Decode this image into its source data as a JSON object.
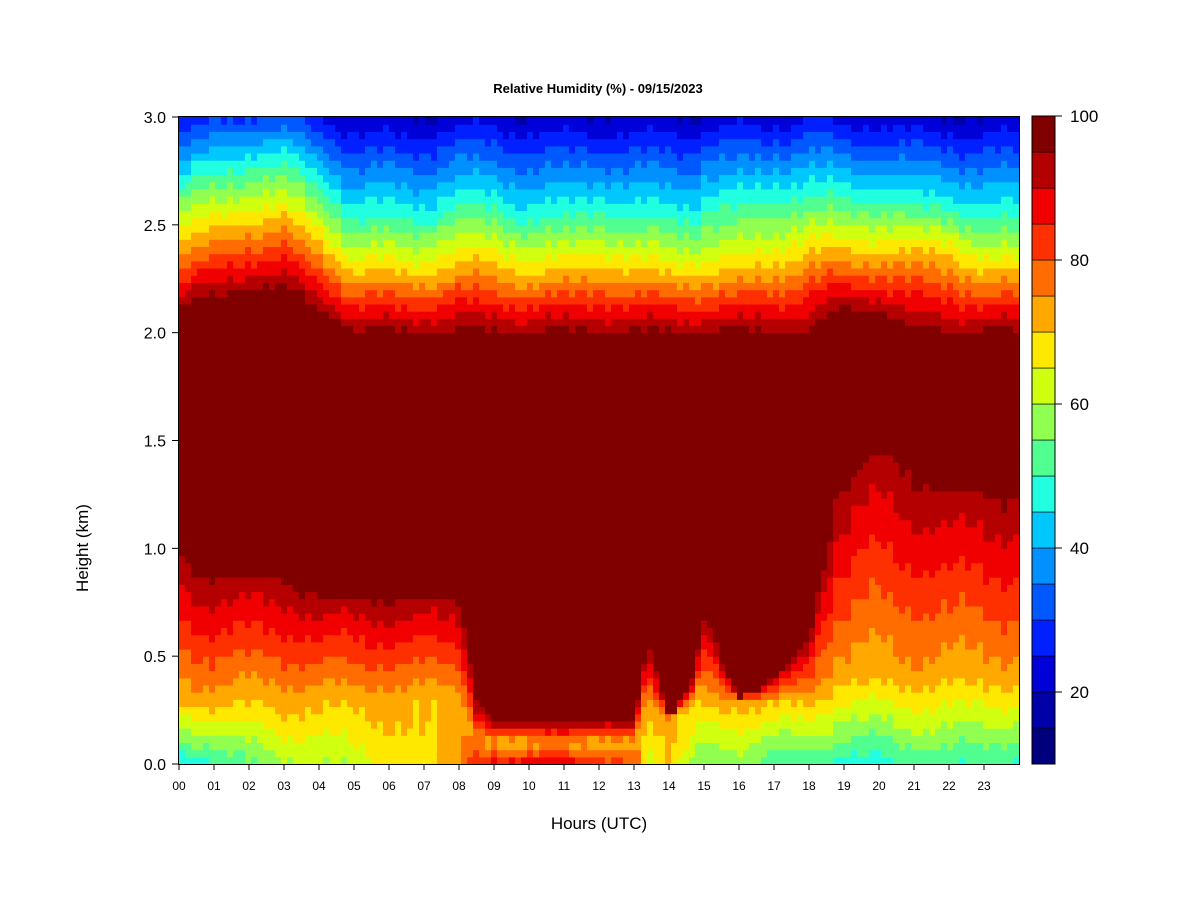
{
  "chart_data": {
    "type": "heatmap",
    "title": "Relative Humidity (%) - 09/15/2023",
    "xlabel": "Hours (UTC)",
    "ylabel": "Height (km)",
    "xlim": [
      0,
      24
    ],
    "ylim": [
      0.0,
      3.0
    ],
    "x_ticks": [
      "00",
      "01",
      "02",
      "03",
      "04",
      "05",
      "06",
      "07",
      "08",
      "09",
      "10",
      "11",
      "12",
      "13",
      "14",
      "15",
      "16",
      "17",
      "18",
      "19",
      "20",
      "21",
      "22",
      "23"
    ],
    "y_ticks": [
      "0.0",
      "0.5",
      "1.0",
      "1.5",
      "2.0",
      "2.5",
      "3.0"
    ],
    "colorbar": {
      "range": [
        10,
        100
      ],
      "step": 5,
      "ticks": [
        "20",
        "40",
        "60",
        "80",
        "100"
      ],
      "colors": [
        "#00007f",
        "#0000a8",
        "#0000d8",
        "#0020ff",
        "#0058ff",
        "#0090ff",
        "#00c8ff",
        "#20ffe0",
        "#50ff90",
        "#90ff50",
        "#d0ff10",
        "#ffe800",
        "#ffa800",
        "#ff6c00",
        "#ff3000",
        "#f00000",
        "#b40000",
        "#800000"
      ]
    },
    "profiles": {
      "description_units": "height in km, relative humidity in %",
      "hours": [
        0,
        1,
        2,
        3,
        4,
        5,
        6,
        7,
        8,
        8.5,
        9,
        10,
        11,
        12,
        13,
        13.4,
        14,
        14.7,
        15,
        16,
        17,
        18,
        18.8,
        20,
        21,
        22,
        23,
        24
      ],
      "surface_rh": [
        45,
        48,
        55,
        58,
        60,
        62,
        65,
        70,
        72,
        85,
        88,
        90,
        88,
        85,
        80,
        60,
        70,
        60,
        55,
        55,
        52,
        50,
        48,
        48,
        50,
        52,
        50,
        48
      ],
      "moist_layer_bottom_km": [
        0.3,
        0.3,
        0.3,
        0.3,
        0.3,
        0.3,
        0.3,
        0.3,
        0.3,
        0.1,
        0.1,
        0.1,
        0.1,
        0.1,
        0.1,
        0.3,
        0.2,
        0.3,
        0.3,
        0.3,
        0.3,
        0.3,
        0.4,
        0.4,
        0.4,
        0.4,
        0.4,
        0.4
      ],
      "saturated_bottom_km": [
        1.0,
        0.9,
        0.9,
        0.9,
        0.8,
        0.8,
        0.8,
        0.8,
        0.8,
        0.3,
        0.2,
        0.2,
        0.2,
        0.2,
        0.2,
        0.6,
        0.2,
        0.4,
        0.7,
        0.3,
        0.4,
        0.6,
        1.3,
        1.5,
        1.4,
        1.3,
        1.3,
        1.3
      ],
      "saturated_top_km": [
        2.1,
        2.15,
        2.2,
        2.2,
        2.1,
        2.0,
        2.0,
        2.0,
        2.0,
        2.0,
        2.0,
        2.0,
        2.0,
        2.0,
        2.0,
        2.0,
        2.0,
        2.0,
        2.0,
        2.0,
        2.0,
        2.0,
        2.1,
        2.1,
        2.0,
        2.0,
        2.0,
        2.0
      ],
      "yellow_level_km": [
        2.45,
        2.5,
        2.55,
        2.55,
        2.45,
        2.3,
        2.3,
        2.3,
        2.35,
        2.35,
        2.35,
        2.3,
        2.3,
        2.35,
        2.3,
        2.3,
        2.3,
        2.3,
        2.3,
        2.3,
        2.35,
        2.4,
        2.4,
        2.4,
        2.4,
        2.4,
        2.3,
        2.3
      ],
      "cyan_level_km": [
        2.7,
        2.75,
        2.8,
        2.8,
        2.7,
        2.55,
        2.55,
        2.55,
        2.6,
        2.6,
        2.6,
        2.55,
        2.55,
        2.6,
        2.55,
        2.55,
        2.55,
        2.55,
        2.6,
        2.6,
        2.65,
        2.65,
        2.65,
        2.65,
        2.6,
        2.6,
        2.55,
        2.55
      ],
      "top_rh": [
        25,
        28,
        30,
        30,
        25,
        20,
        20,
        20,
        22,
        22,
        22,
        20,
        20,
        20,
        20,
        20,
        20,
        20,
        22,
        22,
        22,
        25,
        22,
        22,
        20,
        20,
        20,
        20
      ]
    }
  }
}
